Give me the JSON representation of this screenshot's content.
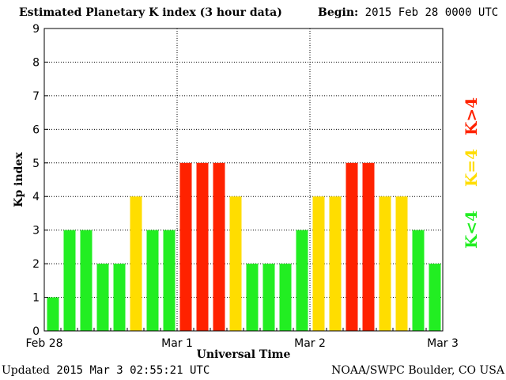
{
  "header": {
    "title": "Estimated Planetary K index (3 hour data)",
    "begin_label": "Begin:",
    "begin_value": "2015 Feb 28 0000 UTC"
  },
  "footer": {
    "updated_label": "Updated",
    "updated_value": "2015 Mar  3 02:55:21 UTC",
    "credit": "NOAA/SWPC Boulder, CO USA"
  },
  "colors": {
    "low": "#22ee22",
    "mid": "#ffdd00",
    "high": "#ff2200"
  },
  "chart_data": {
    "type": "bar",
    "title": "Estimated Planetary K index (3 hour data)",
    "xlabel": "Universal Time",
    "ylabel": "Kp index",
    "ylim": [
      0,
      9
    ],
    "yticks": [
      "0",
      "1",
      "2",
      "3",
      "4",
      "5",
      "6",
      "7",
      "8",
      "9"
    ],
    "xticks": [
      "Feb 28",
      "Mar 1",
      "Mar 2",
      "Mar 3"
    ],
    "grid": true,
    "values": [
      1,
      3,
      3,
      2,
      2,
      4,
      3,
      3,
      5,
      5,
      5,
      4,
      2,
      2,
      2,
      3,
      4,
      4,
      5,
      5,
      4,
      4,
      3,
      2
    ],
    "legend": [
      {
        "label": "K<4",
        "color": "#22ee22"
      },
      {
        "label": "K=4",
        "color": "#ffdd00"
      },
      {
        "label": "K>4",
        "color": "#ff2200"
      }
    ]
  }
}
